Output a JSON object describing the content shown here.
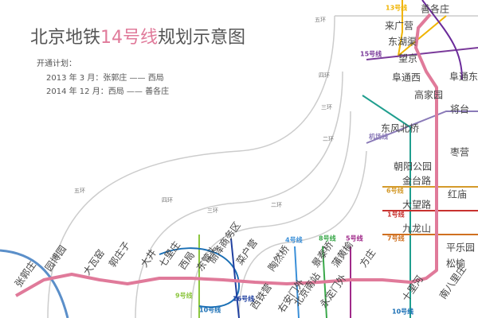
{
  "title": {
    "prefix": "北京地铁",
    "line": "14号线",
    "suffix": "规划示意图"
  },
  "plan": {
    "heading": "开通计划：",
    "phases": [
      "2013 年  3 月：张郭庄 —— 西局",
      "2014 年 12 月：西局 —— 善各庄"
    ]
  },
  "stations": [
    "张郭庄",
    "园博园",
    "大瓦窑",
    "郭庄子",
    "大井",
    "七里庄",
    "西局",
    "东管头",
    "丽泽商务区",
    "菜户营",
    "西铁营",
    "陶然桥",
    "右安门外",
    "北京南站",
    "永定门外",
    "景泰桥",
    "蒲黄榆",
    "方庄",
    "十里河",
    "南八里庄",
    "松榆",
    "平乐园",
    "九龙山",
    "大望路",
    "红庙",
    "金台路",
    "朝阳公园",
    "枣营",
    "东风北桥",
    "将台",
    "高家园",
    "阜通西",
    "阜通东",
    "望京",
    "东湖渠",
    "来广营",
    "善各庄"
  ],
  "lines": [
    "13号线",
    "15号线",
    "机场线",
    "6号线",
    "1号线",
    "7号线",
    "9号线",
    "10号线",
    "16号线",
    "4号线",
    "8号线",
    "5号线",
    "10号线"
  ],
  "rings": [
    "五环",
    "四环",
    "三环",
    "二环",
    "五环",
    "四环",
    "三环",
    "二环"
  ]
}
